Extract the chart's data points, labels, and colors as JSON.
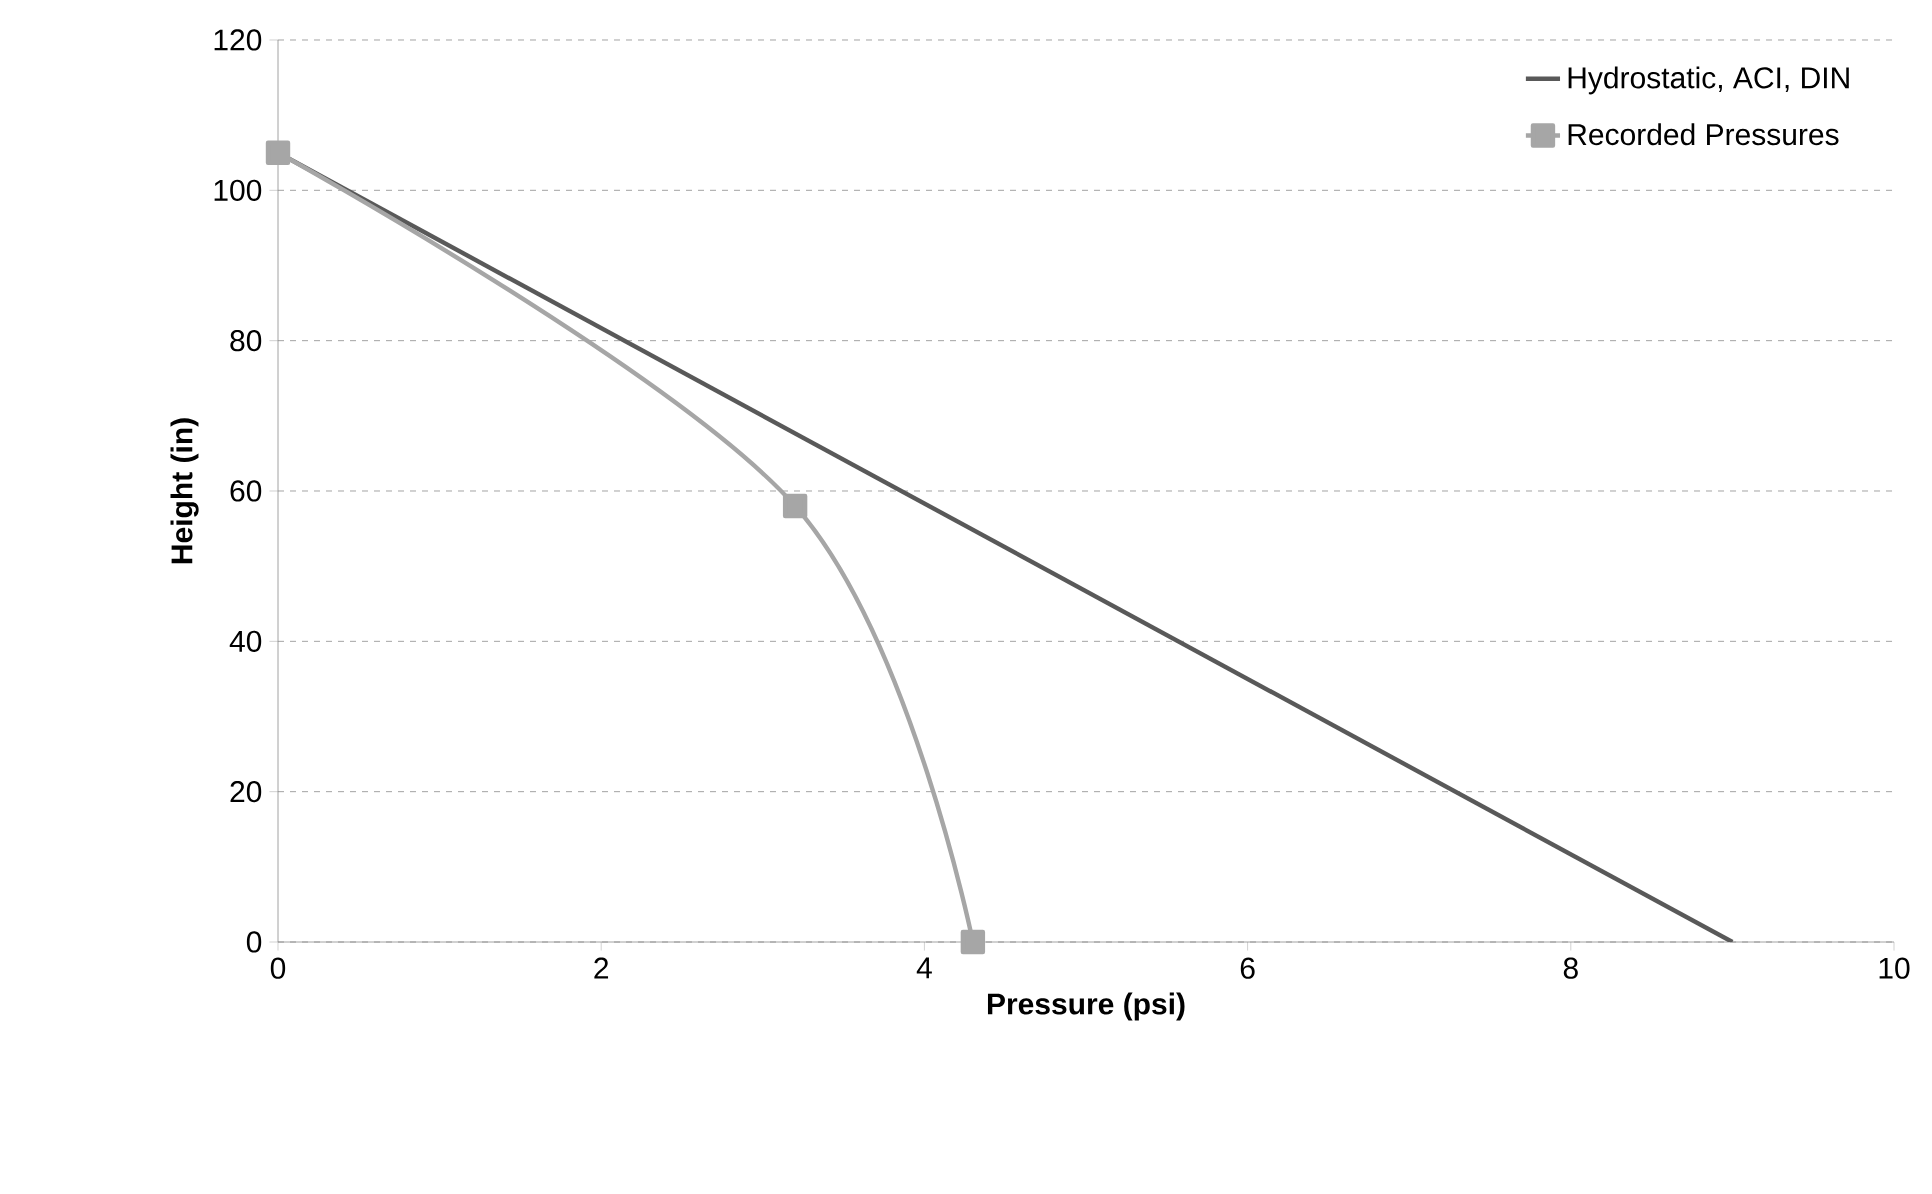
{
  "chart_data": {
    "type": "line",
    "xlabel": "Pressure (psi)",
    "ylabel": "Height (in)",
    "xlim": [
      0,
      10
    ],
    "xticks": [
      0,
      2,
      4,
      6,
      8,
      10
    ],
    "ylim": [
      0,
      120
    ],
    "yticks": [
      0,
      20,
      40,
      60,
      80,
      100,
      120
    ],
    "grid": "y",
    "legend": "top right",
    "line_style": "solid",
    "series": [
      {
        "name": "Hydrostatic, ACI, DIN",
        "color": "#595959",
        "marker": "none",
        "x": [
          0,
          9.0
        ],
        "values": [
          105,
          0
        ]
      },
      {
        "name": "Recorded Pressures",
        "color": "#a6a6a6",
        "marker": "square",
        "x": [
          0,
          3.2,
          4.3
        ],
        "values": [
          105,
          58,
          0
        ]
      }
    ]
  }
}
